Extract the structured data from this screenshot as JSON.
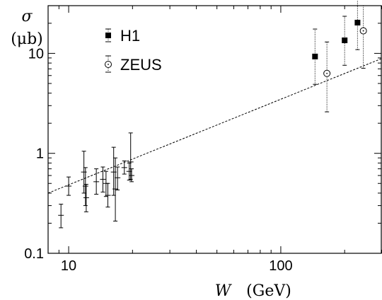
{
  "chart_data": {
    "type": "scatter",
    "title": "",
    "xlabel_var": "W",
    "xlabel_unit": "(GeV)",
    "ylabel_var": "σ",
    "ylabel_unit": "(μb)",
    "x_scale": "log",
    "y_scale": "log",
    "xlim": [
      8,
      300
    ],
    "ylim": [
      0.1,
      30
    ],
    "x_ticks": [
      {
        "value": 10,
        "label": "10"
      },
      {
        "value": 100,
        "label": "100"
      }
    ],
    "y_ticks": [
      {
        "value": 0.1,
        "label": "0.1"
      },
      {
        "value": 1,
        "label": "1"
      },
      {
        "value": 10,
        "label": "10"
      }
    ],
    "grid": false,
    "legend_position": "top-left",
    "series": [
      {
        "name": "H1",
        "marker": "filled-square",
        "error_style": "dotted",
        "points": [
          {
            "x": 145,
            "y": 9.3,
            "ylo": 4.9,
            "yhi": 17.5
          },
          {
            "x": 200,
            "y": 13.5,
            "ylo": 7.6,
            "yhi": 23.5
          },
          {
            "x": 230,
            "y": 20.3,
            "ylo": 10.9,
            "yhi": 37.0
          }
        ]
      },
      {
        "name": "ZEUS",
        "marker": "open-circle",
        "error_style": "dotted",
        "points": [
          {
            "x": 165,
            "y": 6.3,
            "ylo": 2.6,
            "yhi": 13.0
          },
          {
            "x": 245,
            "y": 16.8,
            "ylo": 7.1,
            "yhi": 30.0
          }
        ]
      },
      {
        "name": "",
        "marker": "cross",
        "error_style": "solid",
        "points": [
          {
            "x": 9.2,
            "y": 0.24,
            "ylo": 0.18,
            "yhi": 0.31
          },
          {
            "x": 10.0,
            "y": 0.47,
            "ylo": 0.38,
            "yhi": 0.58
          },
          {
            "x": 11.8,
            "y": 0.65,
            "ylo": 0.4,
            "yhi": 1.05
          },
          {
            "x": 12.0,
            "y": 0.47,
            "ylo": 0.3,
            "yhi": 0.72
          },
          {
            "x": 12.1,
            "y": 0.36,
            "ylo": 0.26,
            "yhi": 0.49
          },
          {
            "x": 13.5,
            "y": 0.52,
            "ylo": 0.39,
            "yhi": 0.7
          },
          {
            "x": 14.5,
            "y": 0.55,
            "ylo": 0.41,
            "yhi": 0.73
          },
          {
            "x": 15.0,
            "y": 0.5,
            "ylo": 0.37,
            "yhi": 0.66
          },
          {
            "x": 15.3,
            "y": 0.38,
            "ylo": 0.29,
            "yhi": 0.5
          },
          {
            "x": 16.3,
            "y": 0.65,
            "ylo": 0.38,
            "yhi": 1.15
          },
          {
            "x": 16.6,
            "y": 0.44,
            "ylo": 0.21,
            "yhi": 0.9
          },
          {
            "x": 17.0,
            "y": 0.57,
            "ylo": 0.43,
            "yhi": 0.73
          },
          {
            "x": 18.3,
            "y": 0.72,
            "ylo": 0.62,
            "yhi": 0.84
          },
          {
            "x": 19.3,
            "y": 0.66,
            "ylo": 0.54,
            "yhi": 0.8
          },
          {
            "x": 19.6,
            "y": 0.82,
            "ylo": 0.55,
            "yhi": 1.6
          },
          {
            "x": 19.8,
            "y": 0.6,
            "ylo": 0.52,
            "yhi": 0.7
          }
        ]
      }
    ],
    "fit_line": {
      "style": "dashed",
      "points": [
        {
          "x": 8,
          "y": 0.4
        },
        {
          "x": 300,
          "y": 8.9
        }
      ]
    }
  }
}
